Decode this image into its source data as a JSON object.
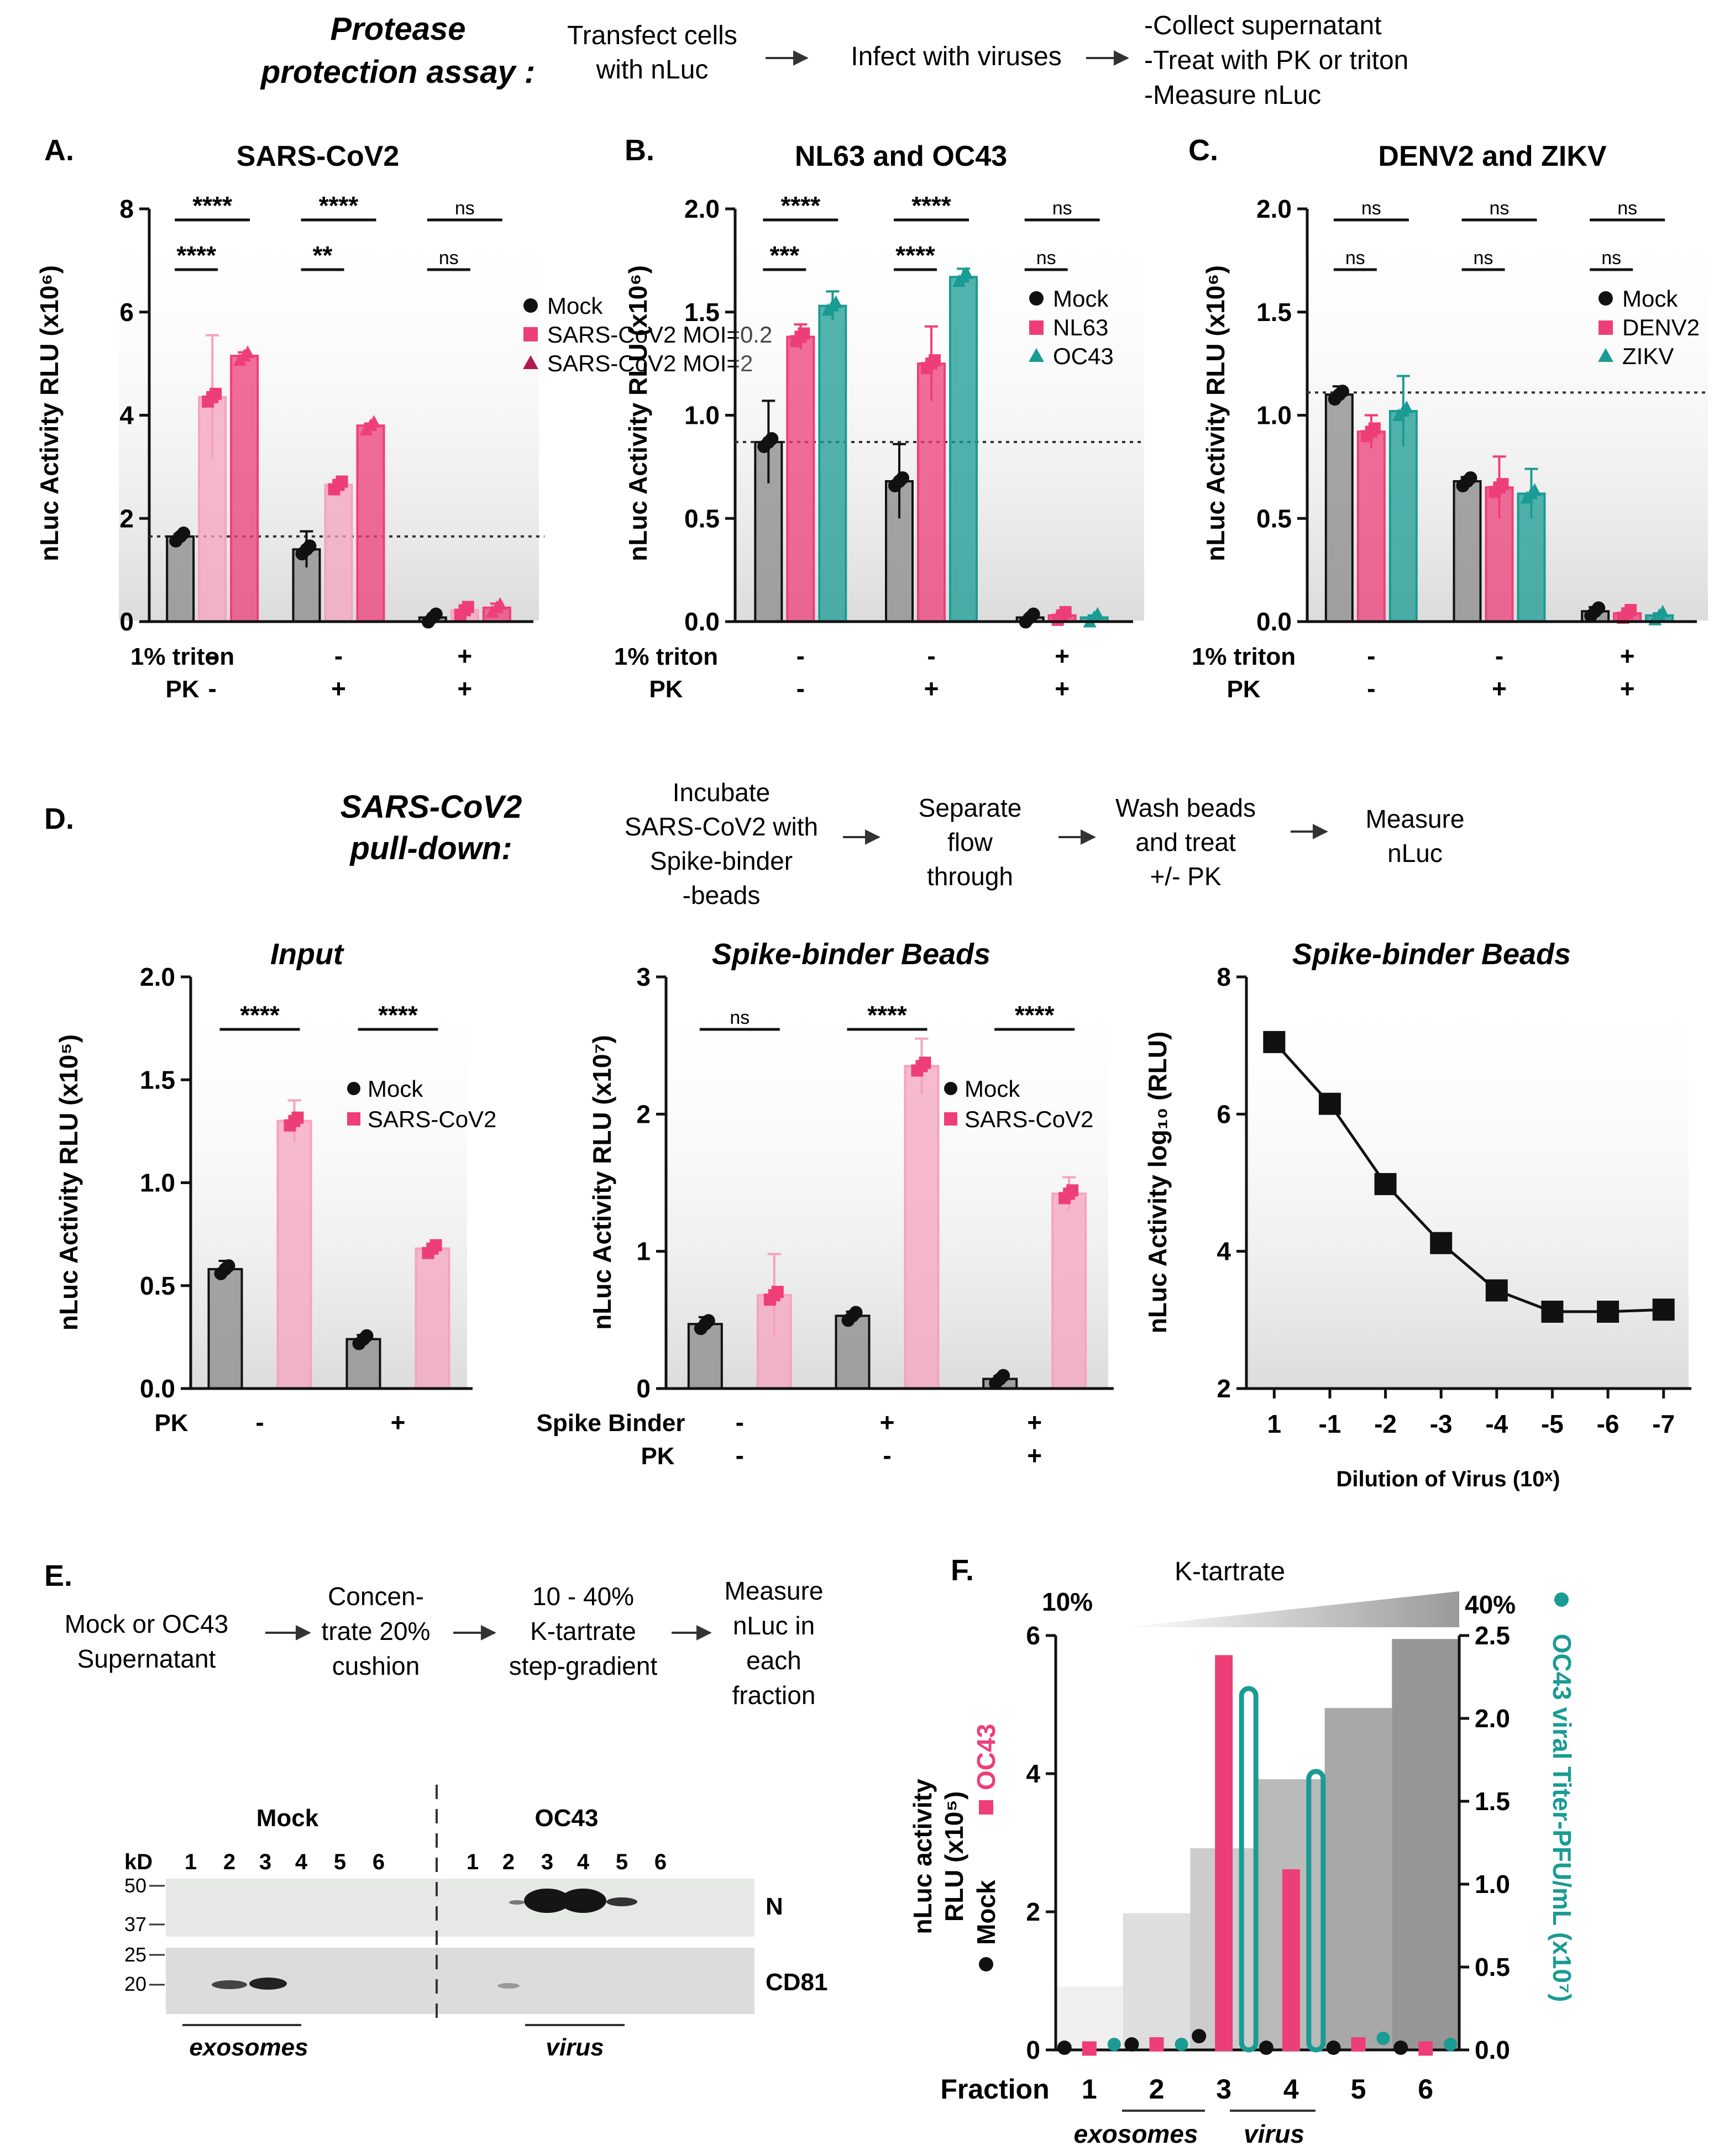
{
  "colors": {
    "mock": "#8a8a8a",
    "pink": "#ee3e78",
    "pinkLight": "#f5a3be",
    "teal": "#1a9b93",
    "black": "#111111"
  },
  "header": {
    "title": "Protease protection assay :",
    "steps": [
      "Transfect cells with nLuc",
      "Infect with viruses",
      "-Collect supernatant",
      "-Treat with PK or triton",
      "-Measure nLuc"
    ]
  },
  "panelD": {
    "letter": "D.",
    "title": "SARS-CoV2 pull-down:",
    "steps": [
      "Incubate SARS-CoV2 with Spike-binder -beads",
      "Separate flow through",
      "Wash beads and treat +/- PK",
      "Measure nLuc"
    ]
  },
  "panelE": {
    "letter": "E.",
    "steps": [
      "Mock or OC43 Supernatant",
      "Concen- trate 20% cushion",
      "10 - 40% K-tartrate step-gradient",
      "Measure nLuc in each fraction"
    ],
    "blot": {
      "kd_label": "kD",
      "mock_label": "Mock",
      "oc43_label": "OC43",
      "lanes": [
        "1",
        "2",
        "3",
        "4",
        "5",
        "6"
      ],
      "markers": [
        "50",
        "37",
        "25",
        "20"
      ],
      "bands": [
        "N",
        "CD81"
      ],
      "group_labels": [
        "exosomes",
        "virus"
      ]
    }
  },
  "chart_data": [
    {
      "id": "A",
      "letter": "A.",
      "type": "bar",
      "title": "SARS-CoV2",
      "ylabel": "nLuc Activity RLU (x10⁶)",
      "ylim": [
        0,
        8
      ],
      "yticks": [
        "0",
        "2",
        "4",
        "6",
        "8"
      ],
      "baseline": 1.65,
      "series": [
        {
          "name": "Mock",
          "color": "#8a8a8a",
          "marker": "circle",
          "values": [
            1.65,
            1.4,
            0.08
          ],
          "err": [
            0.05,
            0.35,
            0.02
          ]
        },
        {
          "name": "SARS-CoV2 MOI=0.2",
          "color": "#f5a3be",
          "marker": "square",
          "values": [
            4.35,
            2.65,
            0.22
          ],
          "err": [
            1.2,
            0.08,
            0.08
          ]
        },
        {
          "name": "SARS-CoV2 MOI=2",
          "color": "#ee3e78",
          "marker": "triangle",
          "values": [
            5.15,
            3.8,
            0.27
          ],
          "err": [
            0.07,
            0.04,
            0.08
          ]
        }
      ],
      "conditions": [
        {
          "label": "1% triton",
          "values": [
            "-",
            "-",
            "+"
          ]
        },
        {
          "label": "PK",
          "values": [
            "-",
            "+",
            "+"
          ]
        }
      ],
      "sig_top": [
        "****",
        "****",
        "ns"
      ],
      "sig_low": [
        "****",
        "**",
        "ns"
      ]
    },
    {
      "id": "B",
      "letter": "B.",
      "type": "bar",
      "title": "NL63 and OC43",
      "ylabel": "nLuc Activity RLU (x10⁶)",
      "ylim": [
        0,
        2.0
      ],
      "yticks": [
        "0.0",
        "0.5",
        "1.0",
        "1.5",
        "2.0"
      ],
      "baseline": 0.87,
      "series": [
        {
          "name": "Mock",
          "color": "#8a8a8a",
          "marker": "circle",
          "values": [
            0.87,
            0.68,
            0.02
          ],
          "err": [
            0.2,
            0.18,
            0.01
          ]
        },
        {
          "name": "NL63",
          "color": "#ee3e78",
          "marker": "square",
          "values": [
            1.38,
            1.25,
            0.03
          ],
          "err": [
            0.06,
            0.18,
            0.01
          ]
        },
        {
          "name": "OC43",
          "color": "#1a9b93",
          "marker": "triangle",
          "values": [
            1.53,
            1.67,
            0.02
          ],
          "err": [
            0.07,
            0.04,
            0.01
          ]
        }
      ],
      "conditions": [
        {
          "label": "1% triton",
          "values": [
            "-",
            "-",
            "+"
          ]
        },
        {
          "label": "PK",
          "values": [
            "-",
            "+",
            "+"
          ]
        }
      ],
      "sig_top": [
        "****",
        "****",
        "ns"
      ],
      "sig_low": [
        "***",
        "****",
        "ns"
      ]
    },
    {
      "id": "C",
      "letter": "C.",
      "type": "bar",
      "title": "DENV2 and ZIKV",
      "ylabel": "nLuc Activity RLU (x10⁶)",
      "ylim": [
        0,
        2.0
      ],
      "yticks": [
        "0.0",
        "0.5",
        "1.0",
        "1.5",
        "2.0"
      ],
      "baseline": 1.11,
      "series": [
        {
          "name": "Mock",
          "color": "#8a8a8a",
          "marker": "circle",
          "values": [
            1.1,
            0.68,
            0.05
          ],
          "err": [
            0.04,
            0.02,
            0.02
          ]
        },
        {
          "name": "DENV2",
          "color": "#ee3e78",
          "marker": "square",
          "values": [
            0.92,
            0.65,
            0.04
          ],
          "err": [
            0.08,
            0.15,
            0.01
          ]
        },
        {
          "name": "ZIKV",
          "color": "#1a9b93",
          "marker": "triangle",
          "values": [
            1.02,
            0.62,
            0.03
          ],
          "err": [
            0.17,
            0.12,
            0.01
          ]
        }
      ],
      "conditions": [
        {
          "label": "1% triton",
          "values": [
            "-",
            "-",
            "+"
          ]
        },
        {
          "label": "PK",
          "values": [
            "-",
            "+",
            "+"
          ]
        }
      ],
      "sig_top": [
        "ns",
        "ns",
        "ns"
      ],
      "sig_low": [
        "ns",
        "ns",
        "ns"
      ]
    },
    {
      "id": "D1",
      "type": "bar",
      "title": "Input",
      "ylabel": "nLuc Activity RLU (x10⁵)",
      "ylim": [
        0,
        2.0
      ],
      "yticks": [
        "0.0",
        "0.5",
        "1.0",
        "1.5",
        "2.0"
      ],
      "series": [
        {
          "name": "Mock",
          "color": "#8a8a8a",
          "marker": "circle",
          "values": [
            0.58,
            0.24
          ],
          "err": [
            0.04,
            0.02
          ]
        },
        {
          "name": "SARS-CoV2",
          "color": "#f5a3be",
          "marker": "square",
          "values": [
            1.3,
            0.68
          ],
          "err": [
            0.1,
            0.02
          ]
        }
      ],
      "conditions": [
        {
          "label": "PK",
          "values": [
            "-",
            "+"
          ]
        }
      ],
      "sig_top": [
        "****",
        "****"
      ]
    },
    {
      "id": "D2",
      "type": "bar",
      "title": "Spike-binder Beads",
      "ylabel": "nLuc Activity RLU (x10⁷)",
      "ylim": [
        0,
        3
      ],
      "yticks": [
        "0",
        "1",
        "2",
        "3"
      ],
      "series": [
        {
          "name": "Mock",
          "color": "#8a8a8a",
          "marker": "circle",
          "values": [
            0.47,
            0.53,
            0.07
          ],
          "err": [
            0.05,
            0.03,
            0.02
          ]
        },
        {
          "name": "SARS-CoV2",
          "color": "#f5a3be",
          "marker": "square",
          "values": [
            0.68,
            2.35,
            1.42
          ],
          "err": [
            0.3,
            0.2,
            0.12
          ]
        }
      ],
      "conditions": [
        {
          "label": "Spike Binder",
          "values": [
            "-",
            "+",
            "+"
          ]
        },
        {
          "label": "PK",
          "values": [
            "-",
            "-",
            "+"
          ]
        }
      ],
      "sig_top": [
        "ns",
        "****",
        "****"
      ]
    },
    {
      "id": "D3",
      "type": "line",
      "title": "Spike-binder Beads",
      "ylabel": "nLuc Activity log₁₀ (RLU)",
      "xlabel": "Dilution of Virus (10ˣ)",
      "ylim": [
        2,
        8
      ],
      "yticks": [
        "2",
        "4",
        "6",
        "8"
      ],
      "x": [
        "1",
        "-1",
        "-2",
        "-3",
        "-4",
        "-5",
        "-6",
        "-7"
      ],
      "values": [
        7.05,
        6.15,
        4.98,
        4.12,
        3.43,
        3.12,
        3.12,
        3.15
      ]
    },
    {
      "id": "F",
      "letter": "F.",
      "type": "bar",
      "title": "K-tartrate",
      "gradient_low": "10%",
      "gradient_high": "40%",
      "ylabel_left": [
        "nLuc activity",
        "RLU (x10⁵)"
      ],
      "legend_left": [
        "Mock",
        "OC43"
      ],
      "ylabel_right": "OC43 viral Titer-PFU/mL (x10⁷)",
      "ylim_left": [
        0,
        6
      ],
      "yticks_left": [
        "0",
        "2",
        "4",
        "6"
      ],
      "ylim_right": [
        0,
        2.5
      ],
      "yticks_right": [
        "0.0",
        "0.5",
        "1.0",
        "1.5",
        "2.0",
        "2.5"
      ],
      "xlabel": "Fraction",
      "categories": [
        "1",
        "2",
        "3",
        "4",
        "5",
        "6"
      ],
      "series": [
        {
          "name": "Mock",
          "color": "#111111",
          "axis": "left",
          "values": [
            0.02,
            0.08,
            0.2,
            0.02,
            0.02,
            0.02
          ]
        },
        {
          "name": "OC43",
          "color": "#ee3e78",
          "axis": "left",
          "values": [
            0.02,
            0.08,
            5.7,
            2.6,
            0.08,
            0.02
          ]
        },
        {
          "name": "OC43 viral titer",
          "color": "#1a9b93",
          "axis": "right",
          "values": [
            0.0,
            0.0,
            2.18,
            1.68,
            0.05,
            0.0
          ]
        }
      ],
      "group_labels": [
        "exosomes",
        "virus"
      ]
    }
  ]
}
